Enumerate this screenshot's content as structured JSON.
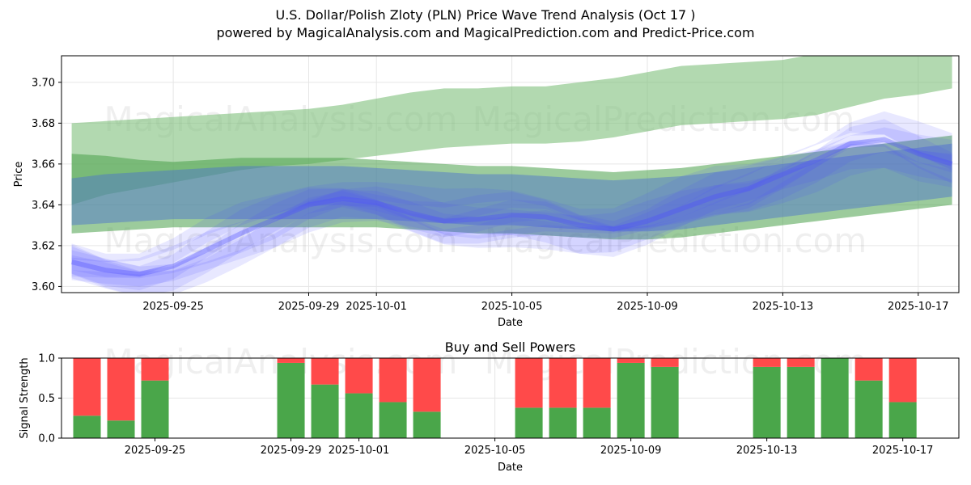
{
  "header": {
    "title": "U.S. Dollar/Polish Zloty (PLN) Price Wave Trend Analysis (Oct 17 )",
    "subtitle": "powered by MagicalAnalysis.com and MagicalPrediction.com and Predict-Price.com"
  },
  "watermarks": [
    "MagicalAnalysis.com",
    "MagicalPrediction.com"
  ],
  "colors": {
    "green_band": "#7fbf7b",
    "green_dark": "#4aa04a",
    "blue_wave": "#4d4dff",
    "buy": "#4aa64a",
    "sell": "#ff4a4a"
  },
  "chart_data": [
    {
      "type": "area",
      "title": "",
      "xlabel": "Date",
      "ylabel": "Price",
      "ylim": [
        3.597,
        3.713
      ],
      "yticks": [
        3.6,
        3.62,
        3.64,
        3.66,
        3.68,
        3.7
      ],
      "ytick_labels": [
        "3.60",
        "3.62",
        "3.64",
        "3.66",
        "3.68",
        "3.70"
      ],
      "x_dates": [
        "2025-09-22",
        "2025-09-23",
        "2025-09-24",
        "2025-09-25",
        "2025-09-26",
        "2025-09-27",
        "2025-09-28",
        "2025-09-29",
        "2025-09-30",
        "2025-10-01",
        "2025-10-02",
        "2025-10-03",
        "2025-10-04",
        "2025-10-05",
        "2025-10-06",
        "2025-10-07",
        "2025-10-08",
        "2025-10-09",
        "2025-10-10",
        "2025-10-11",
        "2025-10-12",
        "2025-10-13",
        "2025-10-14",
        "2025-10-15",
        "2025-10-16",
        "2025-10-17",
        "2025-10-18"
      ],
      "xticks": [
        "2025-09-25",
        "2025-09-29",
        "2025-10-01",
        "2025-10-05",
        "2025-10-09",
        "2025-10-13",
        "2025-10-17"
      ],
      "xlim": [
        "2025-09-21.7",
        "2025-10-18.2"
      ],
      "series": [
        {
          "name": "upper-green-band-top",
          "values": [
            3.68,
            3.681,
            3.682,
            3.683,
            3.684,
            3.685,
            3.686,
            3.687,
            3.689,
            3.692,
            3.695,
            3.697,
            3.697,
            3.698,
            3.698,
            3.7,
            3.702,
            3.705,
            3.708,
            3.709,
            3.71,
            3.711,
            3.714,
            3.716,
            3.718,
            3.714,
            3.713
          ]
        },
        {
          "name": "upper-green-band-bottom",
          "values": [
            3.64,
            3.645,
            3.648,
            3.651,
            3.654,
            3.657,
            3.659,
            3.66,
            3.662,
            3.664,
            3.666,
            3.668,
            3.669,
            3.67,
            3.67,
            3.671,
            3.673,
            3.676,
            3.679,
            3.68,
            3.681,
            3.682,
            3.684,
            3.688,
            3.692,
            3.694,
            3.697
          ]
        },
        {
          "name": "blue-teal-band-top",
          "values": [
            3.653,
            3.655,
            3.656,
            3.657,
            3.658,
            3.659,
            3.659,
            3.659,
            3.659,
            3.658,
            3.657,
            3.656,
            3.655,
            3.655,
            3.654,
            3.653,
            3.652,
            3.653,
            3.654,
            3.656,
            3.658,
            3.66,
            3.662,
            3.664,
            3.666,
            3.668,
            3.67
          ]
        },
        {
          "name": "blue-teal-band-bottom",
          "values": [
            3.63,
            3.631,
            3.632,
            3.633,
            3.633,
            3.633,
            3.633,
            3.633,
            3.633,
            3.633,
            3.632,
            3.631,
            3.63,
            3.63,
            3.629,
            3.628,
            3.627,
            3.627,
            3.628,
            3.63,
            3.632,
            3.634,
            3.636,
            3.638,
            3.64,
            3.642,
            3.644
          ]
        },
        {
          "name": "wave-center-price",
          "values": [
            3.612,
            3.608,
            3.606,
            3.61,
            3.618,
            3.626,
            3.633,
            3.64,
            3.643,
            3.641,
            3.636,
            3.632,
            3.633,
            3.635,
            3.634,
            3.63,
            3.628,
            3.632,
            3.638,
            3.644,
            3.648,
            3.655,
            3.662,
            3.67,
            3.672,
            3.665,
            3.66
          ]
        }
      ]
    },
    {
      "type": "bar",
      "title": "Buy and Sell Powers",
      "xlabel": "Date",
      "ylabel": "Signal Strength",
      "ylim": [
        0,
        1.0
      ],
      "yticks": [
        0.0,
        0.5,
        1.0
      ],
      "ytick_labels": [
        "0.0",
        "0.5",
        "1.0"
      ],
      "xticks": [
        "2025-09-25",
        "2025-09-29",
        "2025-10-01",
        "2025-10-05",
        "2025-10-09",
        "2025-10-13",
        "2025-10-17"
      ],
      "categories": [
        "2025-09-23",
        "2025-09-24",
        "2025-09-25",
        "2025-09-29",
        "2025-09-30",
        "2025-10-01",
        "2025-10-02",
        "2025-10-03",
        "2025-10-06",
        "2025-10-07",
        "2025-10-08",
        "2025-10-09",
        "2025-10-10",
        "2025-10-13",
        "2025-10-14",
        "2025-10-15",
        "2025-10-16",
        "2025-10-17"
      ],
      "series": [
        {
          "name": "Buy",
          "values": [
            0.28,
            0.22,
            0.72,
            0.94,
            0.67,
            0.56,
            0.45,
            0.33,
            0.38,
            0.38,
            0.38,
            0.94,
            0.89,
            0.89,
            0.89,
            1.0,
            0.72,
            0.45
          ]
        },
        {
          "name": "Sell",
          "values": [
            0.72,
            0.78,
            0.28,
            0.06,
            0.33,
            0.44,
            0.55,
            0.67,
            0.62,
            0.62,
            0.62,
            0.06,
            0.11,
            0.11,
            0.11,
            0.0,
            0.28,
            0.55
          ]
        }
      ]
    }
  ]
}
